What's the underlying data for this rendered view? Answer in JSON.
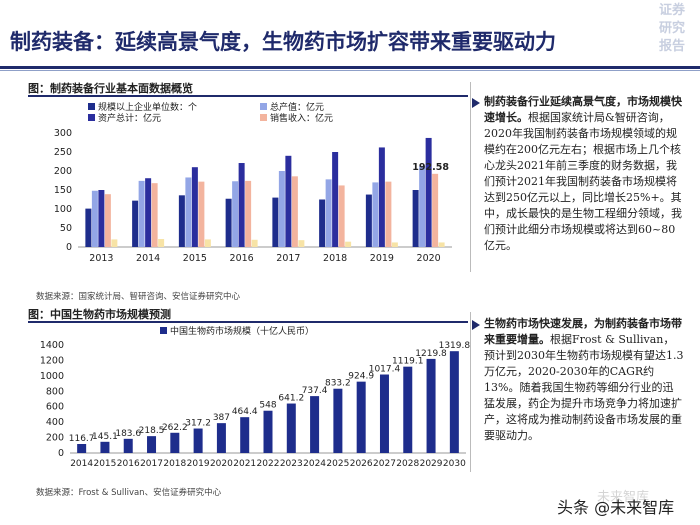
{
  "header": {
    "title": "制药装备：延续高景气度，生物药市场扩容带来重要驱动力",
    "logo_lines": [
      "证券",
      "研究",
      "报告"
    ]
  },
  "section1": {
    "title": "图：制药装备行业基本面数据概览",
    "source": "数据来源：国家统计局、智研咨询、安信证券研究中心"
  },
  "section2": {
    "title": "图：中国生物药市场规模预测",
    "source": "数据来源：Frost & Sullivan、安信证券研究中心"
  },
  "colors": {
    "navy": "#1f2a6b",
    "bar_units": "#1e2d8c",
    "bar_output": "#93a6e6",
    "bar_assets": "#2b2e9e",
    "bar_sales": "#f3b49e",
    "bar_revenue2": "#f7e3a6"
  },
  "chart_data": [
    {
      "type": "bar",
      "title": "",
      "categories": [
        "2013",
        "2014",
        "2015",
        "2016",
        "2017",
        "2018",
        "2019",
        "2020"
      ],
      "ylim": [
        0,
        300
      ],
      "yticks": [
        0,
        50,
        100,
        150,
        200,
        250,
        300
      ],
      "legend_position": "top-left",
      "annotation": {
        "label": "192.58",
        "category": "2020",
        "value": 192.58
      },
      "series": [
        {
          "name": "规模以上企业单位数：个",
          "color": "#1e2d8c",
          "values": [
            101,
            122,
            136,
            127,
            130,
            125,
            138,
            150
          ]
        },
        {
          "name": "总产值：亿元",
          "color": "#93a6e6",
          "values": [
            148,
            174,
            183,
            173,
            200,
            178,
            170,
            213
          ]
        },
        {
          "name": "资产总计：亿元",
          "color": "#2b2e9e",
          "values": [
            150,
            181,
            210,
            221,
            240,
            250,
            262,
            287
          ]
        },
        {
          "name": "销售收入：亿元",
          "color": "#f3b49e",
          "values": [
            139,
            168,
            172,
            174,
            186,
            162,
            172,
            192.58
          ]
        },
        {
          "name": "",
          "color": "#f7e3a6",
          "values": [
            20,
            21,
            20,
            19,
            18,
            14,
            12,
            12
          ]
        }
      ]
    },
    {
      "type": "bar",
      "title": "",
      "categories": [
        "2014",
        "2015",
        "2016",
        "2017",
        "2018",
        "2019",
        "2020",
        "2021",
        "2022",
        "2023",
        "2024",
        "2025",
        "2026",
        "2027",
        "2028",
        "2029",
        "2030"
      ],
      "ylim": [
        0,
        1400
      ],
      "yticks": [
        0,
        200,
        400,
        600,
        800,
        1000,
        1200,
        1400
      ],
      "legend_position": "top-left",
      "series": [
        {
          "name": "中国生物药市场规模（十亿人民币）",
          "color": "#1e2d8c",
          "values": [
            116.7,
            145.1,
            183.6,
            218.5,
            262.2,
            317.2,
            387,
            464.4,
            548,
            641.2,
            737.4,
            833.2,
            924.9,
            1017.4,
            1119.1,
            1219.8,
            1319.8
          ],
          "labels": [
            "116.7",
            "145.1",
            "183.6",
            "218.5",
            "262.2",
            "317.2",
            "387",
            "464.4",
            "548",
            "641.2",
            "737.4",
            "833.2",
            "924.9",
            "1017.4",
            "1119.1",
            "1219.8",
            "1319.8"
          ]
        }
      ]
    }
  ],
  "bullets": [
    {
      "heading": "制药装备行业延续高景气度，市场规模快速增长。",
      "body": "根据国家统计局&智研咨询，2020年我国制药装备市场规模领域的规模约在200亿元左右；根据市场上几个核心龙头2021年前三季度的财务数据，我们预计2021年我国制药装备市场规模将达到250亿元以上，同比增长25%+。其中，成长最快的是生物工程细分领域，我们预计此细分市场规模或将达到60~80亿元。"
    },
    {
      "heading": "生物药市场快速发展，为制药装备市场带来重要增量。",
      "body": "根据Frost & Sullivan，预计到2030年生物药市场规模有望达1.3万亿元，2020-2030年的CAGR约13%。随着我国生物药等细分行业的迅猛发展，药企为提升市场竞争力将加速扩产，这将成为推动制药设备市场发展的重要驱动力。"
    }
  ],
  "watermark": {
    "text": "头条 @未来智库",
    "bg_text": "未来智库"
  }
}
